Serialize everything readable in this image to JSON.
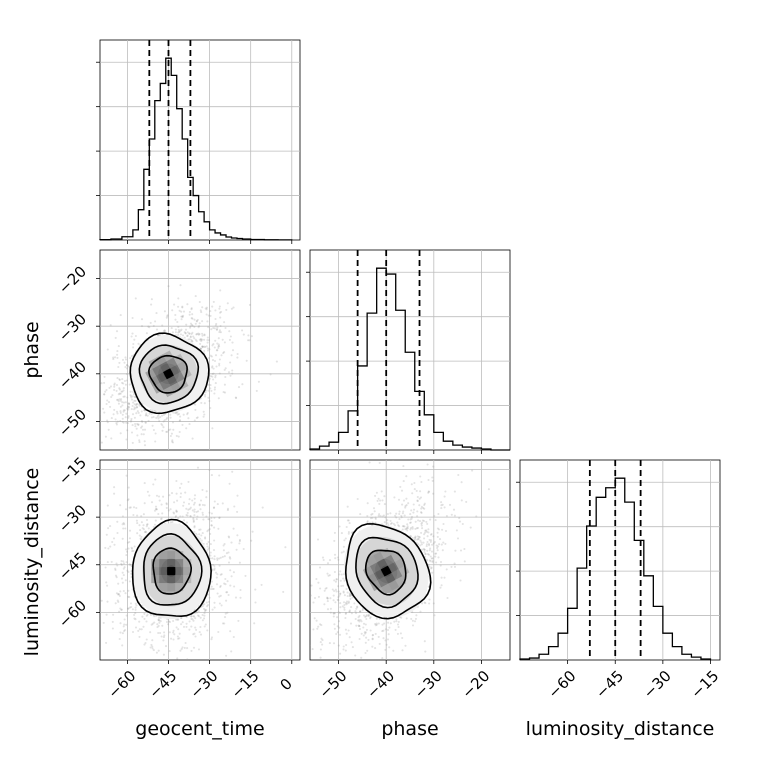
{
  "chart_data": {
    "type": "corner",
    "parameters": [
      "geocent_time",
      "phase",
      "luminosity_distance"
    ],
    "axes": {
      "geocent_time": {
        "range": [
          -70,
          3
        ],
        "ticks": [
          -60,
          -45,
          -30,
          -15,
          0
        ],
        "tick_labels": [
          "−60",
          "−45",
          "−30",
          "−15",
          "0"
        ]
      },
      "phase": {
        "range": [
          -56,
          -14
        ],
        "ticks": [
          -50,
          -40,
          -30,
          -20
        ],
        "tick_labels": [
          "−50",
          "−40",
          "−30",
          "−20"
        ]
      },
      "luminosity_distance": {
        "range": [
          -75,
          -12
        ],
        "ticks": [
          -60,
          -45,
          -30,
          -15
        ],
        "tick_labels": [
          "−60",
          "−45",
          "−30",
          "−15"
        ]
      }
    },
    "histograms": {
      "geocent_time": {
        "edges": [
          -70,
          -66,
          -62,
          -58,
          -56,
          -54,
          -52,
          -50,
          -48,
          -46,
          -44,
          -42,
          -40,
          -38,
          -36,
          -34,
          -32,
          -30,
          -28,
          -26,
          -24,
          -22,
          -20,
          -18,
          -15,
          -10,
          -5,
          0
        ],
        "counts": [
          0.3,
          1.0,
          3.2,
          10.0,
          30.0,
          70.0,
          100.0,
          138.0,
          155.0,
          180.0,
          163.0,
          130.0,
          100.0,
          62.0,
          44.0,
          28.0,
          18.0,
          10.0,
          7.0,
          5.0,
          3.0,
          2.0,
          1.5,
          1.0,
          0.5,
          0.2,
          0.1
        ],
        "quantiles": [
          -52,
          -45,
          -37
        ]
      },
      "phase": {
        "edges": [
          -56,
          -54,
          -52,
          -50,
          -48,
          -46,
          -44,
          -42,
          -40,
          -38,
          -36,
          -34,
          -32,
          -30,
          -28,
          -26,
          -24,
          -22,
          -20,
          -18,
          -16,
          -14
        ],
        "counts": [
          1,
          4,
          8,
          18,
          40,
          86,
          140,
          186,
          180,
          143,
          100,
          60,
          36,
          18,
          9,
          5,
          3,
          2,
          1,
          0,
          0
        ],
        "quantiles": [
          -46,
          -40,
          -33
        ]
      },
      "luminosity_distance": {
        "edges": [
          -75,
          -72,
          -69,
          -66,
          -63,
          -60,
          -57,
          -54,
          -51,
          -48,
          -45,
          -42,
          -39,
          -36,
          -33,
          -30,
          -27,
          -24,
          -21,
          -18,
          -15
        ],
        "counts": [
          1,
          2,
          6,
          14,
          28,
          54,
          96,
          140,
          170,
          180,
          190,
          165,
          125,
          88,
          56,
          28,
          14,
          6,
          3,
          1
        ],
        "quantiles": [
          -53,
          -45,
          -37
        ]
      }
    },
    "scatter_2d": [
      {
        "x": "geocent_time",
        "y": "phase",
        "center": [
          -45,
          -40
        ],
        "spread": [
          11,
          6.5
        ],
        "correlation": 0.45,
        "peak": [
          -45,
          -41
        ]
      },
      {
        "x": "geocent_time",
        "y": "luminosity_distance",
        "center": [
          -44,
          -47
        ],
        "spread": [
          11,
          12
        ],
        "correlation": 0.0,
        "peak": [
          -44,
          -46
        ]
      },
      {
        "x": "phase",
        "y": "luminosity_distance",
        "center": [
          -40,
          -47
        ],
        "spread": [
          6.5,
          12
        ],
        "correlation": 0.45,
        "peak": [
          -41,
          -47
        ]
      }
    ],
    "xlabel": [
      "geocent_time",
      "phase",
      "luminosity_distance"
    ],
    "ylabel": [
      "phase",
      "luminosity_distance"
    ],
    "grid": true
  }
}
